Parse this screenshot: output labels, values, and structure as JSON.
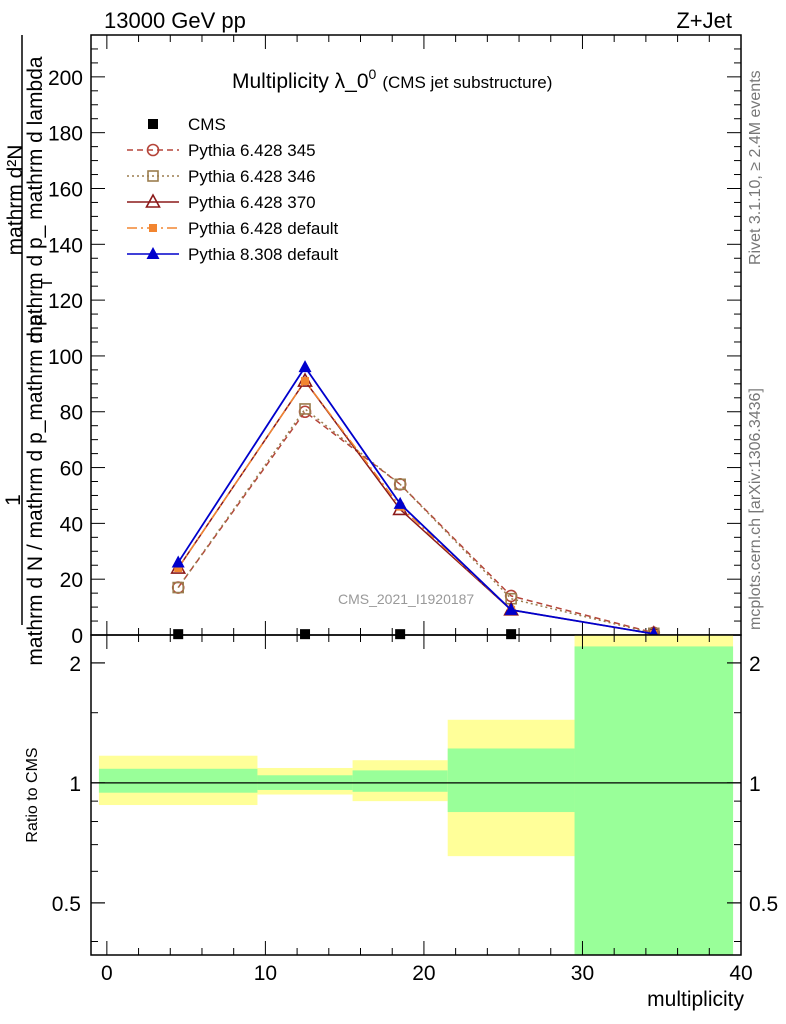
{
  "header": {
    "left": "13000 GeV pp",
    "right": "Z+Jet"
  },
  "side_labels": {
    "rivet": "Rivet 3.1.10, ≥ 2.4M events",
    "mcplots": "mcplots.cern.ch [arXiv:1306.3436]"
  },
  "colors": {
    "cms": "#000000",
    "p345": "#b5453a",
    "p346": "#9b7d4e",
    "p370": "#8b1a1a",
    "pdefault": "#f28530",
    "p8": "#0000cc",
    "band_outer": "#ffff99",
    "band_inner": "#99ff99"
  },
  "chart_data": [
    {
      "type": "line",
      "title": "Multiplicity λ_0",
      "title_sup": "0",
      "title_suffix": "(CMS jet substructure)",
      "watermark": "CMS_2021_I1920187",
      "ylabel_num": "1",
      "ylabel_den": "mathrm d N / mathrm d p_mathrm d p",
      "ylabel_den_sub": "T",
      "ylabel_right": "mathrm d²N",
      "ylabel_right2": "mathrm d p_ mathrm d lambda",
      "ylim": [
        0,
        215
      ],
      "xlim": [
        -1,
        40
      ],
      "yticks": [
        0,
        20,
        40,
        60,
        80,
        100,
        120,
        140,
        160,
        180,
        200
      ],
      "ytick_labels": [
        "0",
        "20",
        "40",
        "60",
        "80",
        "100",
        "120",
        "140",
        "160",
        "180",
        "200"
      ],
      "legend_position": "top-left",
      "x": [
        4.5,
        12.5,
        18.5,
        25.5,
        34.5
      ],
      "series": [
        {
          "name": "CMS",
          "key": "cms",
          "values": [
            0.3,
            0.3,
            0.3,
            0.3,
            0.3
          ],
          "marker": "square",
          "line": "none"
        },
        {
          "name": "Pythia 6.428 345",
          "key": "p345",
          "values": [
            17,
            80,
            54,
            14,
            0.8
          ],
          "marker": "circle-open",
          "line": "dashed"
        },
        {
          "name": "Pythia 6.428 346",
          "key": "p346",
          "values": [
            17,
            81,
            54,
            13,
            0.6
          ],
          "marker": "square-open",
          "line": "dotted"
        },
        {
          "name": "Pythia 6.428 370",
          "key": "p370",
          "values": [
            24,
            91,
            45,
            9,
            0.4
          ],
          "marker": "triangle-open",
          "line": "solid"
        },
        {
          "name": "Pythia 6.428 default",
          "key": "pdefault",
          "values": [
            24,
            91,
            46,
            9,
            0.4
          ],
          "marker": "square-small",
          "line": "dashdot"
        },
        {
          "name": "Pythia 8.308 default",
          "key": "p8",
          "values": [
            26,
            96,
            47,
            9,
            0.4
          ],
          "marker": "triangle",
          "line": "solid"
        }
      ]
    },
    {
      "type": "area",
      "ylabel": "Ratio to CMS",
      "xlabel": "multiplicity",
      "ylog": true,
      "ylim": [
        0.37,
        2.35
      ],
      "yticks": [
        0.5,
        1,
        2
      ],
      "ytick_labels": [
        "0.5",
        "1",
        "2"
      ],
      "xticks": [
        0,
        10,
        20,
        30,
        40
      ],
      "xtick_labels": [
        "0",
        "10",
        "20",
        "30",
        "40"
      ],
      "bins": [
        {
          "x0": -0.5,
          "x1": 9.5,
          "outer": [
            0.88,
            1.17
          ],
          "inner": [
            0.945,
            1.085
          ]
        },
        {
          "x0": 9.5,
          "x1": 15.5,
          "outer": [
            0.935,
            1.09
          ],
          "inner": [
            0.96,
            1.045
          ]
        },
        {
          "x0": 15.5,
          "x1": 21.5,
          "outer": [
            0.9,
            1.14
          ],
          "inner": [
            0.95,
            1.075
          ]
        },
        {
          "x0": 21.5,
          "x1": 29.5,
          "outer": [
            0.655,
            1.44
          ],
          "inner": [
            0.845,
            1.22
          ]
        },
        {
          "x0": 29.5,
          "x1": 39.5,
          "outer": [
            0.37,
            2.35
          ],
          "inner": [
            0.37,
            2.2
          ]
        }
      ],
      "reference": 1
    }
  ]
}
